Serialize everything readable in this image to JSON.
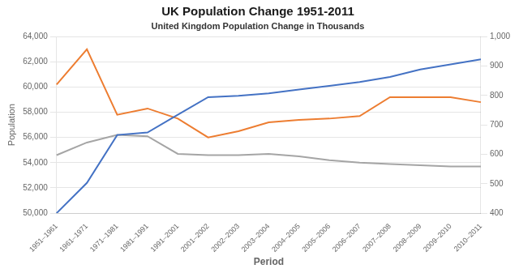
{
  "chart_data": {
    "type": "line",
    "title": "UK Population Change 1951-2011",
    "subtitle": "United Kingdom Population Change in Thousands",
    "x_label": "Period",
    "y_label": "Population",
    "categories": [
      "1951–1961",
      "1961–1971",
      "1971–1981",
      "1981–1991",
      "1991–2001",
      "2001–2002",
      "2002–2003",
      "2003–2004",
      "2004–2005",
      "2005–2006",
      "2006–2007",
      "2007–2008",
      "2008–2009",
      "2009–2010",
      "2010–2011"
    ],
    "series": [
      {
        "color": "#4472c4",
        "values": [
          50000,
          52400,
          56200,
          56400,
          57800,
          59200,
          59300,
          59500,
          59800,
          60100,
          60400,
          60800,
          61400,
          61800,
          62200
        ]
      },
      {
        "color": "#ed7d31",
        "values": [
          60200,
          63000,
          57800,
          58300,
          57500,
          56000,
          56500,
          57200,
          57400,
          57500,
          57700,
          59200,
          59200,
          59200,
          58800
        ]
      },
      {
        "color": "#a5a5a5",
        "values": [
          54600,
          55600,
          56200,
          56100,
          54700,
          54600,
          54600,
          54700,
          54500,
          54200,
          54000,
          53900,
          53800,
          53700,
          53700
        ]
      }
    ],
    "ylim": [
      50000,
      64000
    ],
    "yticks": [
      {
        "value": 50000,
        "label": "50,000"
      },
      {
        "value": 52000,
        "label": "52,000"
      },
      {
        "value": 54000,
        "label": "54,000"
      },
      {
        "value": 56000,
        "label": "56,000"
      },
      {
        "value": 58000,
        "label": "58,000"
      },
      {
        "value": 60000,
        "label": "60,000"
      },
      {
        "value": 62000,
        "label": "62,000"
      },
      {
        "value": 64000,
        "label": "64,000"
      }
    ],
    "y2lim": [
      400,
      1000
    ],
    "y2ticks": [
      400,
      500,
      600,
      700,
      800,
      900,
      {
        "value": 1000,
        "label": "1,000"
      }
    ],
    "grid": true
  }
}
